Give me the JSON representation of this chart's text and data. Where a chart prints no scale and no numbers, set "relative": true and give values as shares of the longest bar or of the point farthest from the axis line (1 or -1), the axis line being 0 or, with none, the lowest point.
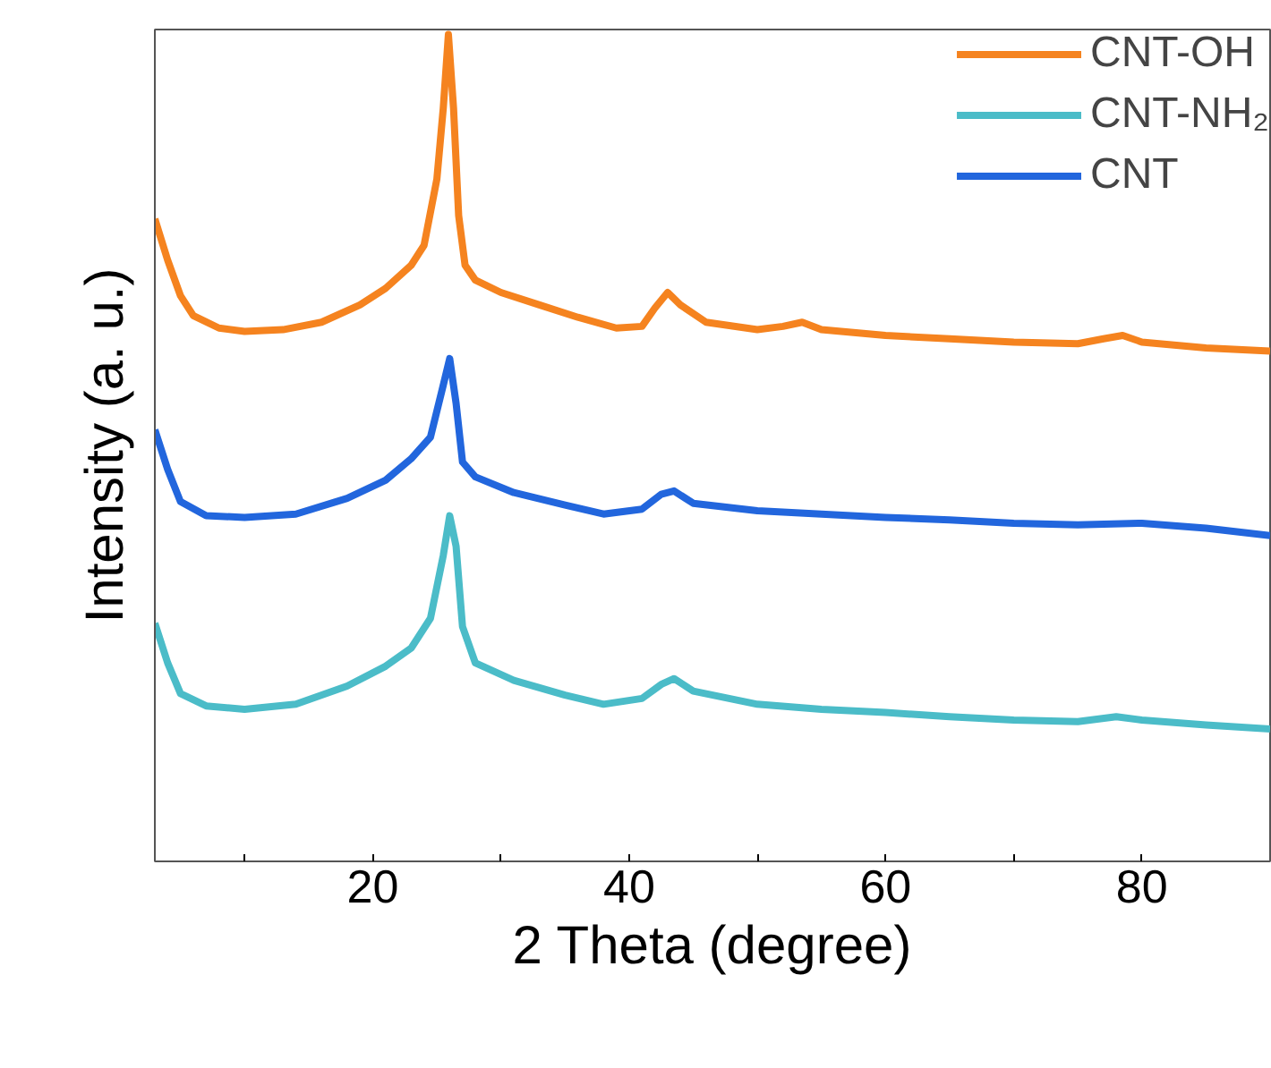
{
  "chart_data": {
    "type": "line",
    "relative": true,
    "xlabel": "2 Theta (degree)",
    "ylabel": "Intensity (a. u.)",
    "xlim": [
      3,
      90
    ],
    "xticks": [
      {
        "value": 10,
        "label": null
      },
      20,
      {
        "value": 30,
        "label": null
      },
      40,
      {
        "value": 50,
        "label": null
      },
      60,
      {
        "value": 70,
        "label": null
      },
      80
    ],
    "tick_labels": "x",
    "grid": false,
    "legend": "top right",
    "marker": "none",
    "line_style": "solid",
    "x": [
      3,
      4,
      5,
      6,
      8,
      10,
      13,
      16,
      19,
      21,
      23,
      24,
      25,
      25.5,
      25.9,
      26.3,
      26.7,
      27.2,
      28,
      30,
      33,
      36,
      39,
      41,
      42,
      43,
      44,
      46,
      50,
      52,
      53.5,
      55,
      60,
      65,
      70,
      75,
      77,
      78.5,
      80,
      85,
      90
    ],
    "series": [
      {
        "name": "CNT-OH",
        "color": "#f5831f",
        "values": [
          0.777,
          0.727,
          0.684,
          0.66,
          0.645,
          0.641,
          0.643,
          0.652,
          0.673,
          0.693,
          0.721,
          0.745,
          0.825,
          0.911,
          1,
          0.911,
          0.781,
          0.721,
          0.703,
          0.688,
          0.673,
          0.658,
          0.645,
          0.647,
          0.669,
          0.688,
          0.673,
          0.652,
          0.643,
          0.647,
          0.652,
          0.643,
          0.636,
          0.632,
          0.628,
          0.626,
          0.632,
          0.636,
          0.628,
          0.621,
          0.617
        ]
      },
      {
        "name": "CNT-NH₂",
        "color": "#4bbcc8",
        "x": [
          3,
          4,
          5,
          7,
          10,
          14,
          18,
          21,
          23,
          24.5,
          25.5,
          26,
          26.5,
          27,
          28,
          31,
          35,
          38,
          41,
          42.5,
          43.5,
          45,
          50,
          55,
          60,
          65,
          70,
          75,
          78,
          80,
          85,
          90
        ],
        "values": [
          0.288,
          0.24,
          0.203,
          0.188,
          0.184,
          0.19,
          0.212,
          0.236,
          0.258,
          0.294,
          0.37,
          0.418,
          0.381,
          0.284,
          0.24,
          0.219,
          0.201,
          0.19,
          0.197,
          0.214,
          0.221,
          0.206,
          0.19,
          0.184,
          0.18,
          0.175,
          0.171,
          0.169,
          0.175,
          0.171,
          0.165,
          0.16
        ]
      },
      {
        "name": "CNT",
        "color": "#2266dd",
        "x": [
          3,
          4,
          5,
          7,
          10,
          14,
          18,
          21,
          23,
          24.5,
          25.5,
          26,
          26.5,
          27,
          28,
          31,
          35,
          38,
          41,
          42.5,
          43.5,
          45,
          50,
          55,
          60,
          65,
          70,
          75,
          80,
          85,
          90
        ],
        "values": [
          0.522,
          0.474,
          0.435,
          0.418,
          0.416,
          0.42,
          0.439,
          0.461,
          0.487,
          0.513,
          0.576,
          0.608,
          0.554,
          0.483,
          0.465,
          0.446,
          0.431,
          0.42,
          0.426,
          0.444,
          0.448,
          0.433,
          0.424,
          0.42,
          0.416,
          0.413,
          0.409,
          0.407,
          0.409,
          0.403,
          0.394
        ]
      }
    ]
  }
}
